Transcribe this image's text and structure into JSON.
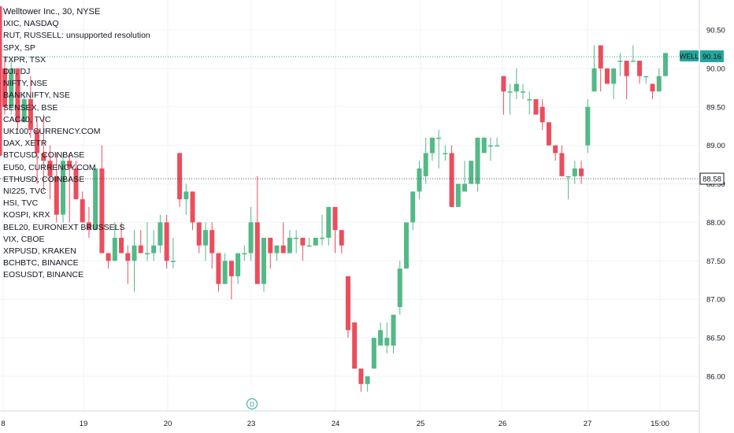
{
  "symbols_legend": {
    "title": "Welltower Inc., 30, NYSE",
    "items": [
      "IXIC, NASDAQ",
      "RUT, RUSSELL: unsupported resolution",
      "SPX, SP",
      "TXPR, TSX",
      "DJI, DJ",
      "NIFTY, NSE",
      "BANKNIFTY, NSE",
      "SENSEX, BSE",
      "CAC40, TVC",
      "UK100, CURRENCY.COM",
      "DAX, XETR",
      "BTCUSD, COINBASE",
      "EU50, CURRENCY.COM",
      "ETHUSD, COINBASE",
      "NI225, TVC",
      "HSI, TVC",
      "KOSPI, KRX",
      "BEL20, EURONEXT BRUSSELS",
      "VIX, CBOE",
      "XRPUSD, KRAKEN",
      "BCHBTC, BINANCE",
      "EOSUSDT, BINANCE"
    ]
  },
  "price_tag": {
    "symbol": "WELL",
    "price": "90.16"
  },
  "crosshair_price": "88.58",
  "event_marker": "D",
  "colors": {
    "up": "#26a69a",
    "down": "#ef5350",
    "up_fill": "#53b987",
    "down_fill": "#eb4d5c",
    "tag": "#26a69a"
  },
  "chart_data": {
    "type": "candlestick",
    "y_ticks": [
      "90.50",
      "90.00",
      "89.50",
      "89.00",
      "88.50",
      "88.00",
      "87.50",
      "87.00",
      "86.50",
      "86.00"
    ],
    "x_ticks": [
      "8",
      "19",
      "20",
      "23",
      "24",
      "25",
      "26",
      "27",
      "15:00"
    ],
    "ylim": [
      85.6,
      90.9
    ],
    "grid": true,
    "last_price": 90.16,
    "candles": [
      [
        90.0,
        90.15,
        89.4,
        89.5
      ],
      [
        89.5,
        90.1,
        89.4,
        90.0
      ],
      [
        90.0,
        90.0,
        89.2,
        89.3
      ],
      [
        89.3,
        89.7,
        89.3,
        89.6
      ],
      [
        89.6,
        89.9,
        89.1,
        89.2
      ],
      [
        89.2,
        89.3,
        88.5,
        88.9
      ],
      [
        88.9,
        89.4,
        88.4,
        88.8
      ],
      [
        88.8,
        89.0,
        88.3,
        88.6
      ],
      [
        88.6,
        88.9,
        88.0,
        88.1
      ],
      [
        88.1,
        88.9,
        88.0,
        88.8
      ],
      [
        88.8,
        88.9,
        88.0,
        88.7
      ],
      [
        88.7,
        88.8,
        88.3,
        88.3
      ],
      [
        88.3,
        88.4,
        88.0,
        88.0
      ],
      [
        88.0,
        88.2,
        87.8,
        87.9
      ],
      [
        87.9,
        88.7,
        87.9,
        88.7
      ],
      [
        88.7,
        89.0,
        87.6,
        87.6
      ],
      [
        87.6,
        87.6,
        87.4,
        87.5
      ],
      [
        87.5,
        88.0,
        87.5,
        87.8
      ],
      [
        87.8,
        88.0,
        87.6,
        87.6
      ],
      [
        87.6,
        87.7,
        87.2,
        87.5
      ],
      [
        87.5,
        87.9,
        87.1,
        87.7
      ],
      [
        87.7,
        87.9,
        87.6,
        87.6
      ],
      [
        87.6,
        88.0,
        87.5,
        87.6
      ],
      [
        87.6,
        87.9,
        87.5,
        87.7
      ],
      [
        87.7,
        88.1,
        87.6,
        88.0
      ],
      [
        88.0,
        88.1,
        87.4,
        87.5
      ],
      [
        87.5,
        87.8,
        87.4,
        87.5
      ],
      [
        88.9,
        88.9,
        88.2,
        88.3
      ],
      [
        88.3,
        88.5,
        88.1,
        88.4
      ],
      [
        88.4,
        88.4,
        87.9,
        88.0
      ],
      [
        88.0,
        88.0,
        87.6,
        87.7
      ],
      [
        87.7,
        88.0,
        87.5,
        87.9
      ],
      [
        87.9,
        88.0,
        87.4,
        87.6
      ],
      [
        87.6,
        87.6,
        87.1,
        87.2
      ],
      [
        87.2,
        87.6,
        87.2,
        87.5
      ],
      [
        87.5,
        87.5,
        87.0,
        87.3
      ],
      [
        87.3,
        87.6,
        87.2,
        87.6
      ],
      [
        87.6,
        87.7,
        87.5,
        87.6
      ],
      [
        87.6,
        88.2,
        87.5,
        88.0
      ],
      [
        88.0,
        88.6,
        87.2,
        87.2
      ],
      [
        87.2,
        87.8,
        87.1,
        87.8
      ],
      [
        87.8,
        87.8,
        87.4,
        87.6
      ],
      [
        87.6,
        87.7,
        87.5,
        87.7
      ],
      [
        87.7,
        88.0,
        87.6,
        87.6
      ],
      [
        87.6,
        87.9,
        87.6,
        87.8
      ],
      [
        87.8,
        87.9,
        87.6,
        87.8
      ],
      [
        87.8,
        87.8,
        87.5,
        87.7
      ],
      [
        87.7,
        87.8,
        87.7,
        87.7
      ],
      [
        87.7,
        87.8,
        87.7,
        87.8
      ],
      [
        87.8,
        88.1,
        87.7,
        87.8
      ],
      [
        87.8,
        88.2,
        87.7,
        88.2
      ],
      [
        88.2,
        88.2,
        87.6,
        87.9
      ],
      [
        87.9,
        87.9,
        87.6,
        87.7
      ],
      [
        87.3,
        87.3,
        86.5,
        86.6
      ],
      [
        86.7,
        86.7,
        86.1,
        86.1
      ],
      [
        86.1,
        86.1,
        85.8,
        85.9
      ],
      [
        85.9,
        86.0,
        85.8,
        86.0
      ],
      [
        86.1,
        86.5,
        86.1,
        86.5
      ],
      [
        86.4,
        86.7,
        86.4,
        86.6
      ],
      [
        86.4,
        86.7,
        86.3,
        86.5
      ],
      [
        86.4,
        86.8,
        86.3,
        86.8
      ],
      [
        86.9,
        87.5,
        86.8,
        87.4
      ],
      [
        87.4,
        88.0,
        87.4,
        88.0
      ],
      [
        88.0,
        88.4,
        87.9,
        88.4
      ],
      [
        88.4,
        88.8,
        88.3,
        88.7
      ],
      [
        88.6,
        89.1,
        88.5,
        88.9
      ],
      [
        88.9,
        89.1,
        88.8,
        89.1
      ],
      [
        89.1,
        89.2,
        88.7,
        89.1
      ],
      [
        88.9,
        89.0,
        88.8,
        88.9
      ],
      [
        88.9,
        89.0,
        88.2,
        88.2
      ],
      [
        88.2,
        88.5,
        88.2,
        88.5
      ],
      [
        88.4,
        88.8,
        88.4,
        88.5
      ],
      [
        88.5,
        88.8,
        88.5,
        88.8
      ],
      [
        88.5,
        89.1,
        88.4,
        89.1
      ],
      [
        88.9,
        89.1,
        88.9,
        89.1
      ],
      [
        89.0,
        89.1,
        88.8,
        89.0
      ],
      [
        89.0,
        89.1,
        89.0,
        89.0
      ],
      [
        89.9,
        89.9,
        89.4,
        89.7
      ],
      [
        89.7,
        89.8,
        89.4,
        89.7
      ],
      [
        89.7,
        90.0,
        89.6,
        89.8
      ],
      [
        89.7,
        89.8,
        89.6,
        89.7
      ],
      [
        89.6,
        89.7,
        89.4,
        89.6
      ],
      [
        89.6,
        89.6,
        89.4,
        89.4
      ],
      [
        89.5,
        89.6,
        89.2,
        89.3
      ],
      [
        89.3,
        89.3,
        89.0,
        89.0
      ],
      [
        89.0,
        89.0,
        88.8,
        88.9
      ],
      [
        88.9,
        89.0,
        88.6,
        88.6
      ],
      [
        88.6,
        88.6,
        88.3,
        88.6
      ],
      [
        88.6,
        88.8,
        88.5,
        88.7
      ],
      [
        88.7,
        88.8,
        88.5,
        88.6
      ],
      [
        89.0,
        89.6,
        88.9,
        89.5
      ],
      [
        89.7,
        90.3,
        89.7,
        90.0
      ],
      [
        90.3,
        90.3,
        89.7,
        90.0
      ],
      [
        90.0,
        90.0,
        89.8,
        89.8
      ],
      [
        89.8,
        90.0,
        89.6,
        90.0
      ],
      [
        90.1,
        90.2,
        89.9,
        90.1
      ],
      [
        90.1,
        90.1,
        89.6,
        89.9
      ],
      [
        90.1,
        90.3,
        90.1,
        90.1
      ],
      [
        90.1,
        90.1,
        89.8,
        89.9
      ],
      [
        89.9,
        89.9,
        89.8,
        89.9
      ],
      [
        89.8,
        89.8,
        89.6,
        89.7
      ],
      [
        89.7,
        90.0,
        89.7,
        89.9
      ],
      [
        89.9,
        90.2,
        89.9,
        90.2
      ]
    ]
  }
}
